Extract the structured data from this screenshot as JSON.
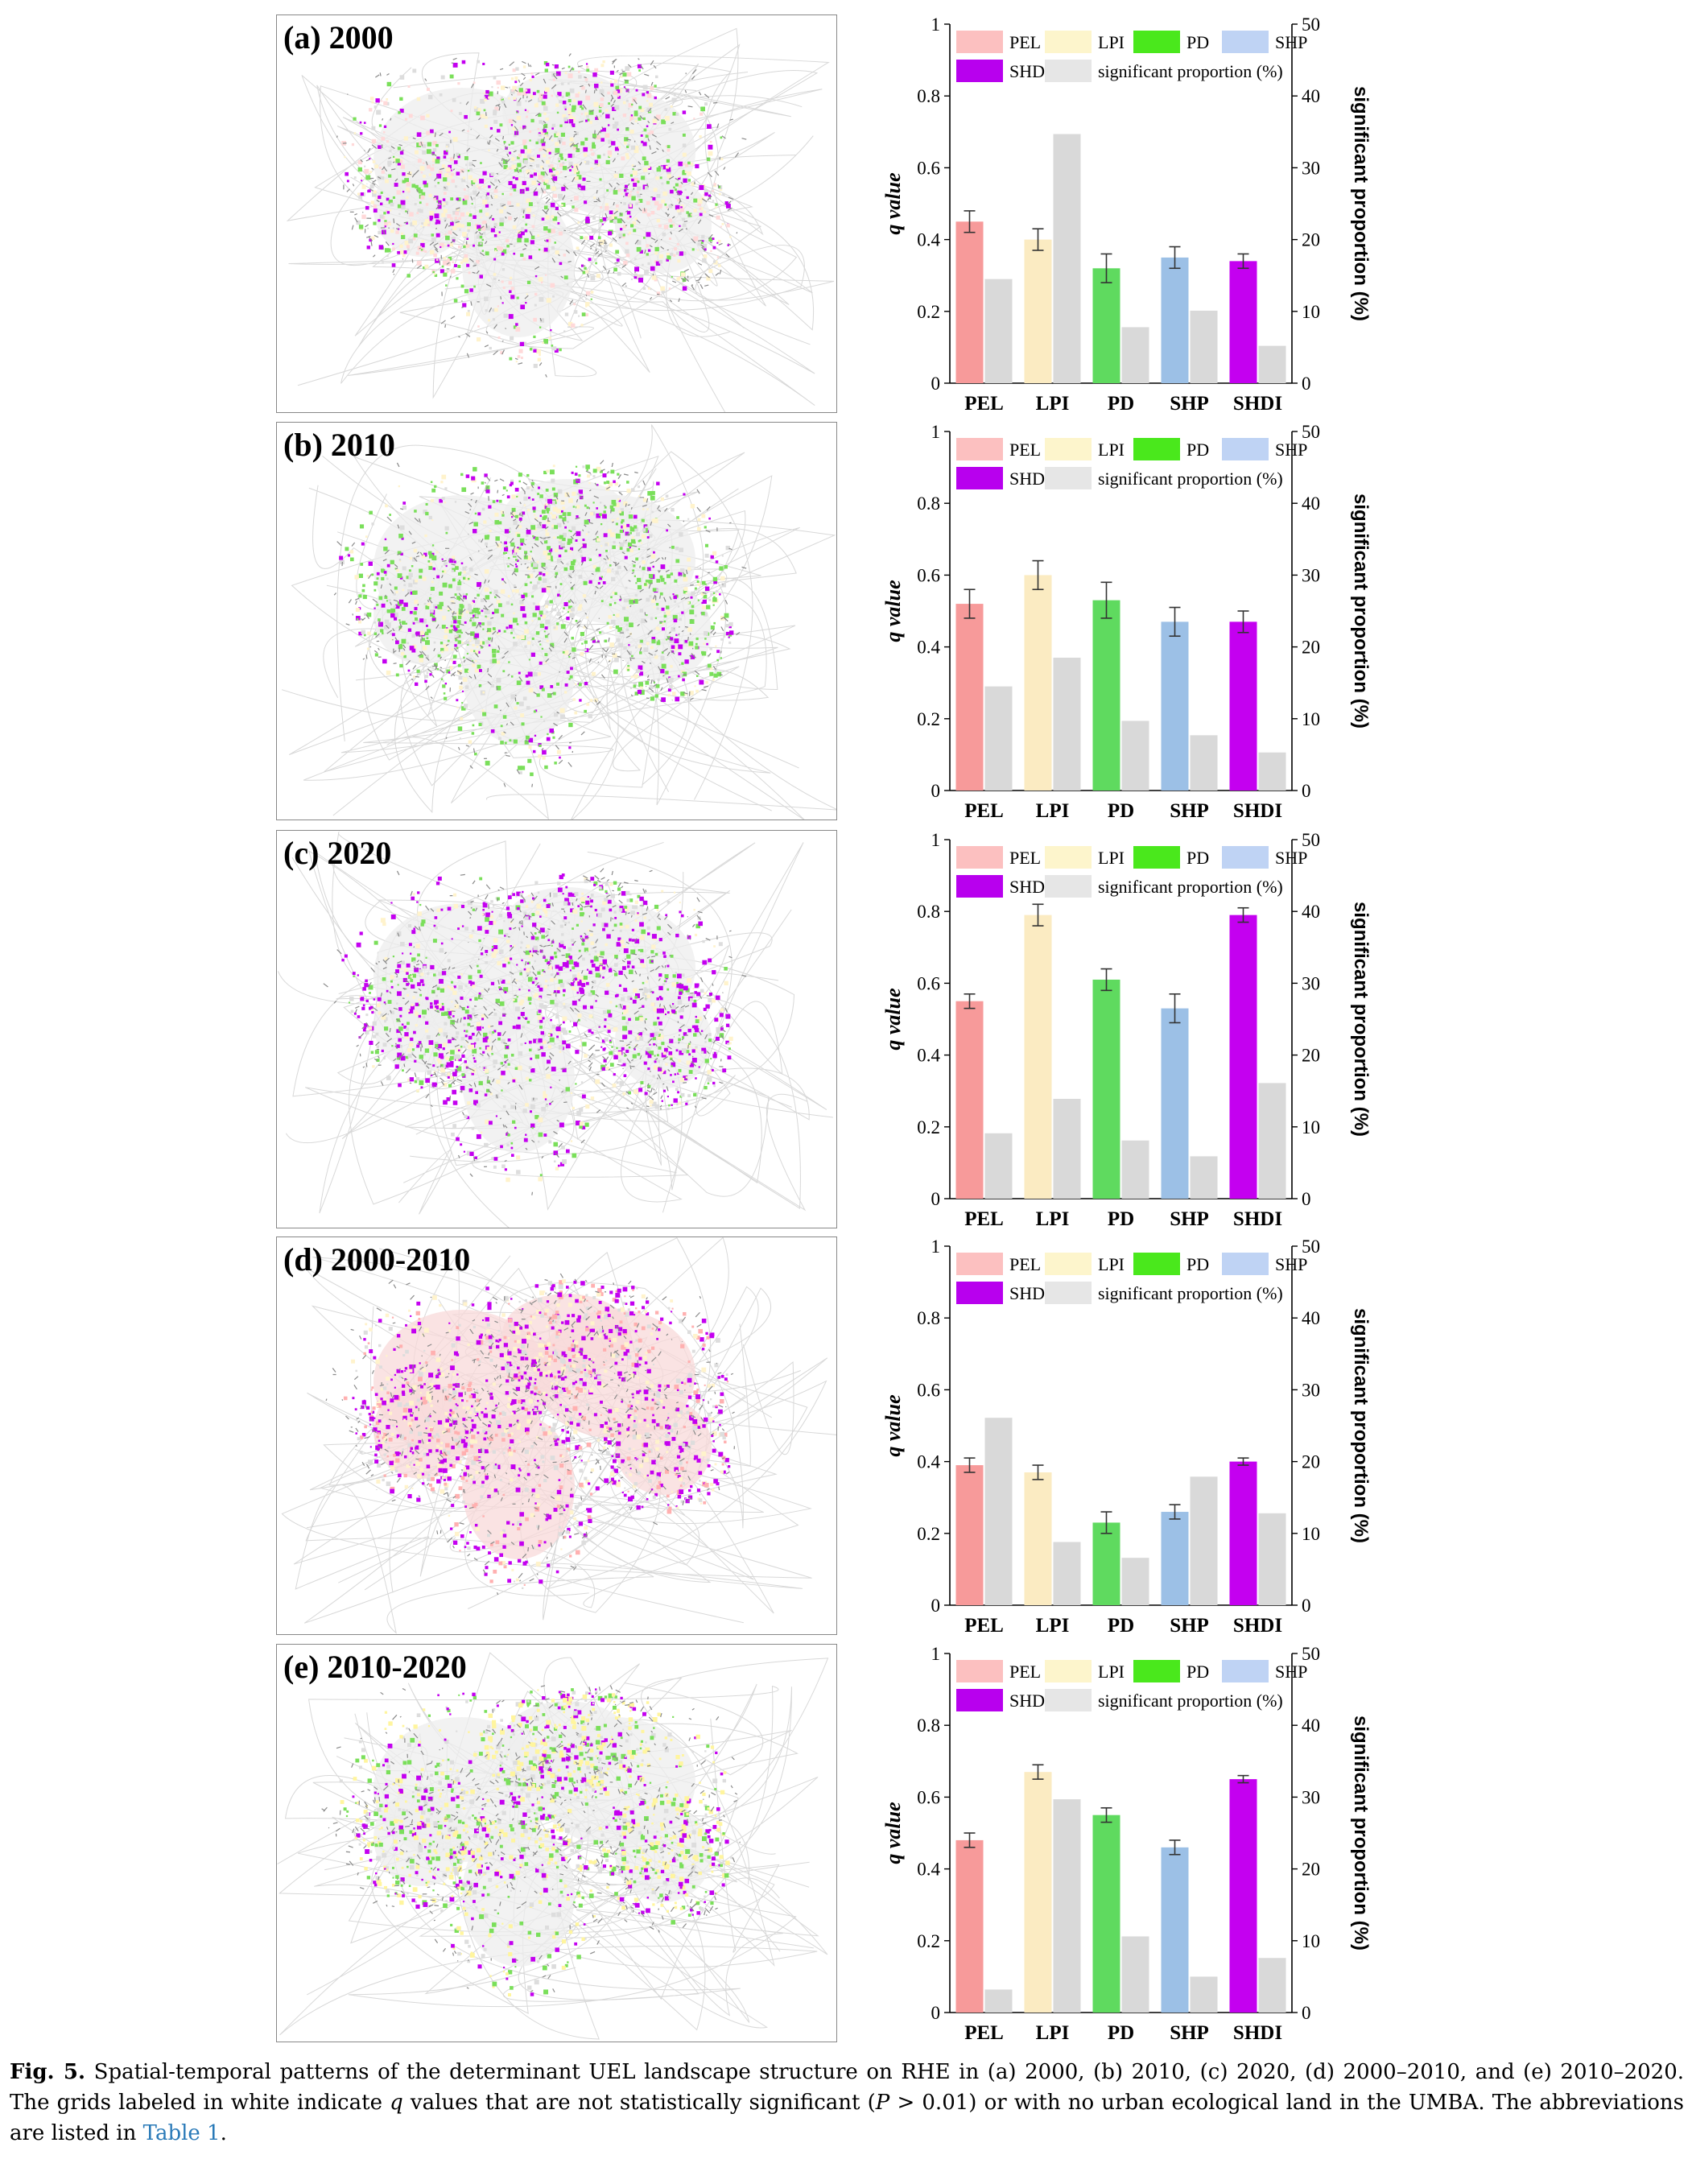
{
  "colors": {
    "PEL": "#f79a9a",
    "LPI": "#fbebc2",
    "PD": "#5fda5f",
    "SHP": "#9cc0e6",
    "SHDI": "#c400f0",
    "significant": "#d9d9d9",
    "legend_PEL": "#fcc0c0",
    "legend_LPI": "#fdf5cc",
    "legend_PD": "#4ae81c",
    "legend_SHP": "#bfd3f4",
    "legend_SHDI": "#b800ee",
    "legend_significant": "#e6e6e6"
  },
  "panels": [
    {
      "map_label": "(a) 2000"
    },
    {
      "map_label": "(b) 2010"
    },
    {
      "map_label": "(c) 2020"
    },
    {
      "map_label": "(d) 2000-2010"
    },
    {
      "map_label": "(e) 2010-2020"
    }
  ],
  "legend": {
    "items": [
      "PEL",
      "LPI",
      "PD",
      "SHP",
      "SHDI",
      "significant proportion (%)"
    ]
  },
  "chart_data": [
    {
      "type": "bar",
      "panel": "(a) 2000",
      "categories": [
        "PEL",
        "LPI",
        "PD",
        "SHP",
        "SHDI"
      ],
      "ylabel": "q value",
      "y2label": "significant proportion (%)",
      "ylim": [
        0,
        1
      ],
      "y2lim": [
        0,
        50
      ],
      "yticks": [
        "0",
        "0.2",
        "0.4",
        "0.6",
        "0.8",
        "1"
      ],
      "y2ticks": [
        "0",
        "10",
        "20",
        "30",
        "40",
        "50"
      ],
      "series": [
        {
          "axis": "left",
          "values": [
            0.45,
            0.4,
            0.32,
            0.35,
            0.34
          ],
          "errors": [
            0.03,
            0.03,
            0.04,
            0.03,
            0.02
          ]
        },
        {
          "name": "significant proportion (%)",
          "axis": "right",
          "values": [
            14.5,
            34.7,
            7.8,
            10.1,
            5.2
          ]
        }
      ]
    },
    {
      "type": "bar",
      "panel": "(b) 2010",
      "categories": [
        "PEL",
        "LPI",
        "PD",
        "SHP",
        "SHDI"
      ],
      "ylabel": "q value",
      "y2label": "significant proportion (%)",
      "ylim": [
        0,
        1
      ],
      "y2lim": [
        0,
        50
      ],
      "yticks": [
        "0",
        "0.2",
        "0.4",
        "0.6",
        "0.8",
        "1"
      ],
      "y2ticks": [
        "0",
        "10",
        "20",
        "30",
        "40",
        "50"
      ],
      "series": [
        {
          "axis": "left",
          "values": [
            0.52,
            0.6,
            0.53,
            0.47,
            0.47
          ],
          "errors": [
            0.04,
            0.04,
            0.05,
            0.04,
            0.03
          ]
        },
        {
          "name": "significant proportion (%)",
          "axis": "right",
          "values": [
            14.5,
            18.5,
            9.7,
            7.7,
            5.3
          ]
        }
      ]
    },
    {
      "type": "bar",
      "panel": "(c) 2020",
      "categories": [
        "PEL",
        "LPI",
        "PD",
        "SHP",
        "SHDI"
      ],
      "ylabel": "q value",
      "y2label": "significant proportion (%)",
      "ylim": [
        0,
        1
      ],
      "y2lim": [
        0,
        50
      ],
      "yticks": [
        "0",
        "0.2",
        "0.4",
        "0.6",
        "0.8",
        "1"
      ],
      "y2ticks": [
        "0",
        "10",
        "20",
        "30",
        "40",
        "50"
      ],
      "series": [
        {
          "axis": "left",
          "values": [
            0.55,
            0.79,
            0.61,
            0.53,
            0.79
          ],
          "errors": [
            0.02,
            0.03,
            0.03,
            0.04,
            0.02
          ]
        },
        {
          "name": "significant proportion (%)",
          "axis": "right",
          "values": [
            9.1,
            13.9,
            8.1,
            5.9,
            16.1
          ]
        }
      ]
    },
    {
      "type": "bar",
      "panel": "(d) 2000-2010",
      "categories": [
        "PEL",
        "LPI",
        "PD",
        "SHP",
        "SHDI"
      ],
      "ylabel": "q value",
      "y2label": "significant proportion (%)",
      "ylim": [
        0,
        1
      ],
      "y2lim": [
        0,
        50
      ],
      "yticks": [
        "0",
        "0.2",
        "0.4",
        "0.6",
        "0.8",
        "1"
      ],
      "y2ticks": [
        "0",
        "10",
        "20",
        "30",
        "40",
        "50"
      ],
      "series": [
        {
          "axis": "left",
          "values": [
            0.39,
            0.37,
            0.23,
            0.26,
            0.4
          ],
          "errors": [
            0.02,
            0.02,
            0.03,
            0.02,
            0.01
          ]
        },
        {
          "name": "significant proportion (%)",
          "axis": "right",
          "values": [
            26.1,
            8.8,
            6.6,
            17.9,
            12.8
          ]
        }
      ]
    },
    {
      "type": "bar",
      "panel": "(e) 2010-2020",
      "categories": [
        "PEL",
        "LPI",
        "PD",
        "SHP",
        "SHDI"
      ],
      "ylabel": "q value",
      "y2label": "significant proportion (%)",
      "ylim": [
        0,
        1
      ],
      "y2lim": [
        0,
        50
      ],
      "yticks": [
        "0",
        "0.2",
        "0.4",
        "0.6",
        "0.8",
        "1"
      ],
      "y2ticks": [
        "0",
        "10",
        "20",
        "30",
        "40",
        "50"
      ],
      "series": [
        {
          "axis": "left",
          "values": [
            0.48,
            0.67,
            0.55,
            0.46,
            0.65
          ],
          "errors": [
            0.02,
            0.02,
            0.02,
            0.02,
            0.01
          ]
        },
        {
          "name": "significant proportion (%)",
          "axis": "right",
          "values": [
            3.2,
            29.7,
            10.6,
            5.0,
            7.6
          ]
        }
      ]
    }
  ],
  "caption": {
    "fig_label": "Fig. 5.",
    "text_1": " Spatial-temporal patterns of the determinant UEL landscape structure on RHE in (a) 2000, (b) 2010, (c) 2020, (d) 2000–2010, and (e) 2010–2020. The grids labeled in white indicate ",
    "q": "q",
    "text_2": " values that are not statistically significant (",
    "p": "P",
    "text_3": " > 0.01) or with no urban ecological land in the UMBA. The abbreviations are listed in ",
    "table_link": "Table 1",
    "text_4": "."
  }
}
